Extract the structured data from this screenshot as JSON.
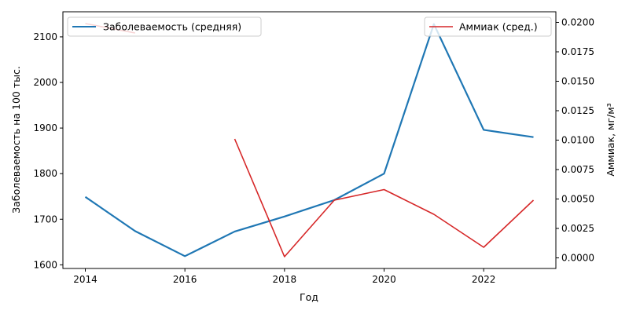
{
  "chart_data": {
    "type": "line",
    "x": [
      2014,
      2015,
      2016,
      2017,
      2018,
      2019,
      2020,
      2021,
      2022,
      2023
    ],
    "xlabel": "Год",
    "xlim": [
      2013.55,
      2023.45
    ],
    "xticks": [
      2014,
      2016,
      2018,
      2020,
      2022
    ],
    "y_left": {
      "label": "Заболеваемость на 100 тыс.",
      "lim": [
        1592,
        2155
      ],
      "ticks": [
        1600,
        1700,
        1800,
        1900,
        2000,
        2100
      ]
    },
    "y_right": {
      "label": "Аммиак, мг/м³",
      "lim": [
        -0.0009,
        0.0209
      ],
      "ticks": [
        "0.0000",
        "0.0025",
        "0.0050",
        "0.0075",
        "0.0100",
        "0.0125",
        "0.0150",
        "0.0175",
        "0.0200"
      ]
    },
    "series": [
      {
        "name": "Заболеваемость (средняя)",
        "axis": "left",
        "color": "#1f77b4",
        "values": [
          1749,
          1674,
          1619,
          1673,
          1706,
          1742,
          1800,
          2128,
          1896,
          1880
        ]
      },
      {
        "name": "Аммиак (сред.)",
        "axis": "right",
        "color": "#d62728",
        "values": [
          0.0199,
          0.0191,
          null,
          0.0101,
          0.0001,
          0.0049,
          0.0058,
          0.0037,
          0.0009,
          0.0049
        ]
      }
    ],
    "legends": [
      "top-left",
      "top-right"
    ],
    "grid": false
  }
}
